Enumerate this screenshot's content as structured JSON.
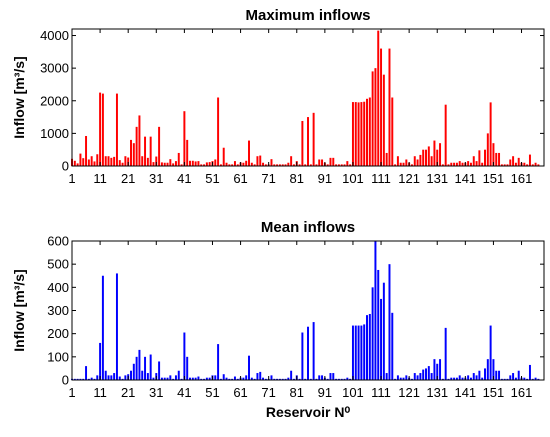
{
  "chart_data": [
    {
      "type": "bar",
      "title": "Maximum inflows",
      "ylabel": "Inflow [m³/s]",
      "xlabel": "",
      "color": "#ff0000",
      "xlim": [
        1,
        169
      ],
      "ylim": [
        0,
        4200
      ],
      "yticks": [
        0,
        1000,
        2000,
        3000,
        4000
      ],
      "xticks": [
        1,
        11,
        21,
        31,
        41,
        51,
        61,
        71,
        81,
        91,
        101,
        111,
        121,
        131,
        141,
        151,
        161
      ],
      "xtick_labels": [
        "1",
        "11",
        "21",
        "31",
        "41",
        "51",
        "61",
        "71",
        "81",
        "91",
        "101",
        "111",
        "121",
        "131",
        "141",
        "151",
        "161"
      ],
      "values": [
        220,
        160,
        80,
        380,
        240,
        920,
        200,
        300,
        140,
        360,
        2250,
        2220,
        300,
        300,
        250,
        280,
        2220,
        180,
        100,
        300,
        260,
        800,
        700,
        1200,
        1550,
        300,
        900,
        250,
        900,
        120,
        290,
        1200,
        110,
        100,
        100,
        210,
        80,
        150,
        400,
        50,
        1680,
        800,
        160,
        160,
        140,
        150,
        50,
        50,
        110,
        120,
        150,
        200,
        2100,
        50,
        560,
        100,
        50,
        50,
        150,
        50,
        110,
        100,
        160,
        780,
        100,
        50,
        300,
        320,
        100,
        50,
        50,
        210,
        50,
        50,
        50,
        50,
        50,
        100,
        300,
        50,
        150,
        50,
        1380,
        50,
        1500,
        50,
        1630,
        50,
        200,
        200,
        100,
        50,
        250,
        250,
        50,
        50,
        50,
        50,
        150,
        50,
        1960,
        1960,
        1950,
        1960,
        1970,
        2060,
        2100,
        2900,
        3000,
        4150,
        3600,
        2800,
        400,
        3600,
        2100,
        50,
        300,
        100,
        100,
        200,
        100,
        50,
        300,
        200,
        340,
        500,
        500,
        600,
        300,
        780,
        500,
        700,
        50,
        1880,
        50,
        100,
        100,
        100,
        150,
        100,
        100,
        150,
        100,
        300,
        150,
        480,
        100,
        500,
        1000,
        1950,
        700,
        400,
        400,
        50,
        50,
        50,
        200,
        300,
        100,
        250,
        100,
        100,
        50,
        350,
        50,
        100,
        50
      ]
    },
    {
      "type": "bar",
      "title": "Mean inflows",
      "ylabel": "Inflow [m³/s]",
      "xlabel": "Reservoir N⁰",
      "color": "#0000ff",
      "xlim": [
        1,
        169
      ],
      "ylim": [
        0,
        600
      ],
      "yticks": [
        0,
        100,
        200,
        300,
        400,
        500,
        600
      ],
      "xticks": [
        1,
        11,
        21,
        31,
        41,
        51,
        61,
        71,
        81,
        91,
        101,
        111,
        121,
        131,
        141,
        151,
        161
      ],
      "xtick_labels": [
        "1",
        "11",
        "21",
        "31",
        "41",
        "51",
        "61",
        "71",
        "81",
        "91",
        "101",
        "111",
        "121",
        "131",
        "141",
        "151",
        "161"
      ],
      "values": [
        5,
        5,
        5,
        5,
        5,
        60,
        5,
        10,
        5,
        20,
        160,
        450,
        40,
        20,
        20,
        30,
        460,
        15,
        5,
        20,
        25,
        40,
        70,
        100,
        130,
        40,
        100,
        30,
        110,
        10,
        30,
        80,
        10,
        10,
        10,
        20,
        5,
        20,
        40,
        5,
        205,
        100,
        10,
        10,
        10,
        15,
        5,
        5,
        10,
        10,
        20,
        20,
        155,
        5,
        25,
        10,
        5,
        5,
        15,
        5,
        10,
        10,
        20,
        105,
        10,
        5,
        30,
        35,
        10,
        5,
        5,
        20,
        5,
        5,
        5,
        5,
        5,
        10,
        40,
        5,
        20,
        5,
        205,
        5,
        230,
        5,
        250,
        5,
        20,
        20,
        10,
        5,
        30,
        30,
        5,
        5,
        5,
        5,
        10,
        5,
        235,
        235,
        235,
        235,
        240,
        280,
        285,
        400,
        600,
        475,
        350,
        420,
        30,
        500,
        290,
        5,
        20,
        10,
        10,
        20,
        10,
        5,
        30,
        20,
        30,
        45,
        50,
        60,
        30,
        90,
        70,
        90,
        5,
        225,
        5,
        10,
        10,
        10,
        20,
        10,
        10,
        20,
        10,
        30,
        20,
        40,
        10,
        50,
        90,
        235,
        90,
        40,
        40,
        5,
        5,
        5,
        20,
        30,
        10,
        40,
        10,
        10,
        5,
        65,
        5,
        10,
        5
      ]
    }
  ]
}
